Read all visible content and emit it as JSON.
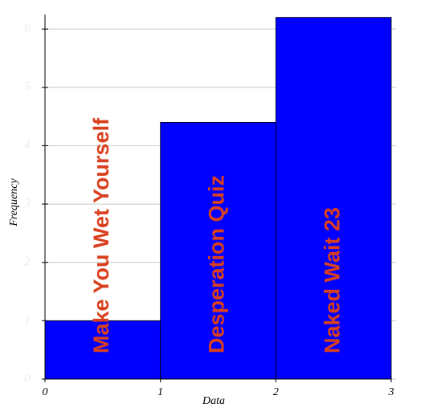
{
  "chart_data": {
    "type": "histogram",
    "x_label": "Data",
    "y_label": "Frequency",
    "bins": [
      0,
      1,
      2,
      3
    ],
    "values": [
      1,
      4.4,
      6.2
    ],
    "labels": [
      "Make You Wet Yourself",
      "Desperation Quiz",
      "Naked Wait 23"
    ],
    "color": "#0000ff",
    "label_color": "#d9401e",
    "xlim": [
      0,
      3
    ],
    "xticks": [
      0,
      1,
      2,
      3
    ],
    "ylim": [
      0,
      6.25
    ],
    "yticks": [
      0,
      1,
      2,
      3,
      4,
      5,
      6
    ],
    "grid": true
  }
}
